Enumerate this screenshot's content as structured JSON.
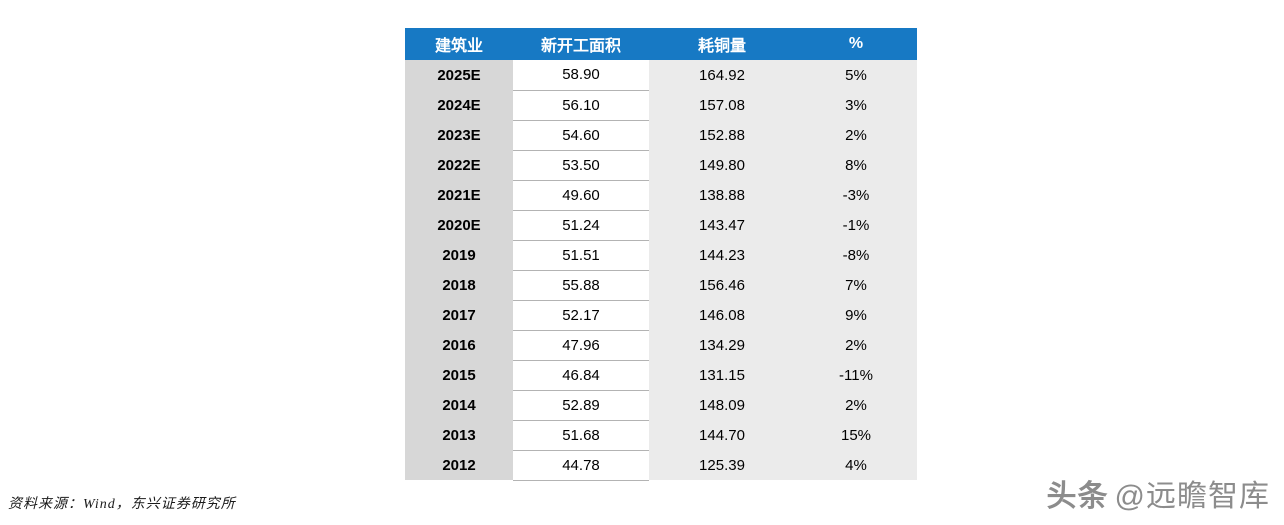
{
  "chart_data": {
    "type": "table",
    "columns": [
      "建筑业",
      "新开工面积",
      "耗铜量",
      "%"
    ],
    "rows": [
      {
        "year": "2025E",
        "area": "58.90",
        "copper": "164.92",
        "pct": "5%"
      },
      {
        "year": "2024E",
        "area": "56.10",
        "copper": "157.08",
        "pct": "3%"
      },
      {
        "year": "2023E",
        "area": "54.60",
        "copper": "152.88",
        "pct": "2%"
      },
      {
        "year": "2022E",
        "area": "53.50",
        "copper": "149.80",
        "pct": "8%"
      },
      {
        "year": "2021E",
        "area": "49.60",
        "copper": "138.88",
        "pct": "-3%"
      },
      {
        "year": "2020E",
        "area": "51.24",
        "copper": "143.47",
        "pct": "-1%"
      },
      {
        "year": "2019",
        "area": "51.51",
        "copper": "144.23",
        "pct": "-8%"
      },
      {
        "year": "2018",
        "area": "55.88",
        "copper": "156.46",
        "pct": "7%"
      },
      {
        "year": "2017",
        "area": "52.17",
        "copper": "146.08",
        "pct": "9%"
      },
      {
        "year": "2016",
        "area": "47.96",
        "copper": "134.29",
        "pct": "2%"
      },
      {
        "year": "2015",
        "area": "46.84",
        "copper": "131.15",
        "pct": "-11%"
      },
      {
        "year": "2014",
        "area": "52.89",
        "copper": "148.09",
        "pct": "2%"
      },
      {
        "year": "2013",
        "area": "51.68",
        "copper": "144.70",
        "pct": "15%"
      },
      {
        "year": "2012",
        "area": "44.78",
        "copper": "125.39",
        "pct": "4%"
      }
    ]
  },
  "source_note": "资料来源：Wind，东兴证券研究所",
  "watermark": {
    "brand": "头条",
    "handle": "@远瞻智库"
  },
  "colors": {
    "header_bg": "#1779c4",
    "header_text": "#ffffff",
    "year_col_bg": "#d7d7d7",
    "right_col_bg": "#ebebeb",
    "row_divider": "#b3b3b3",
    "watermark_text": "#8c8c8c"
  }
}
